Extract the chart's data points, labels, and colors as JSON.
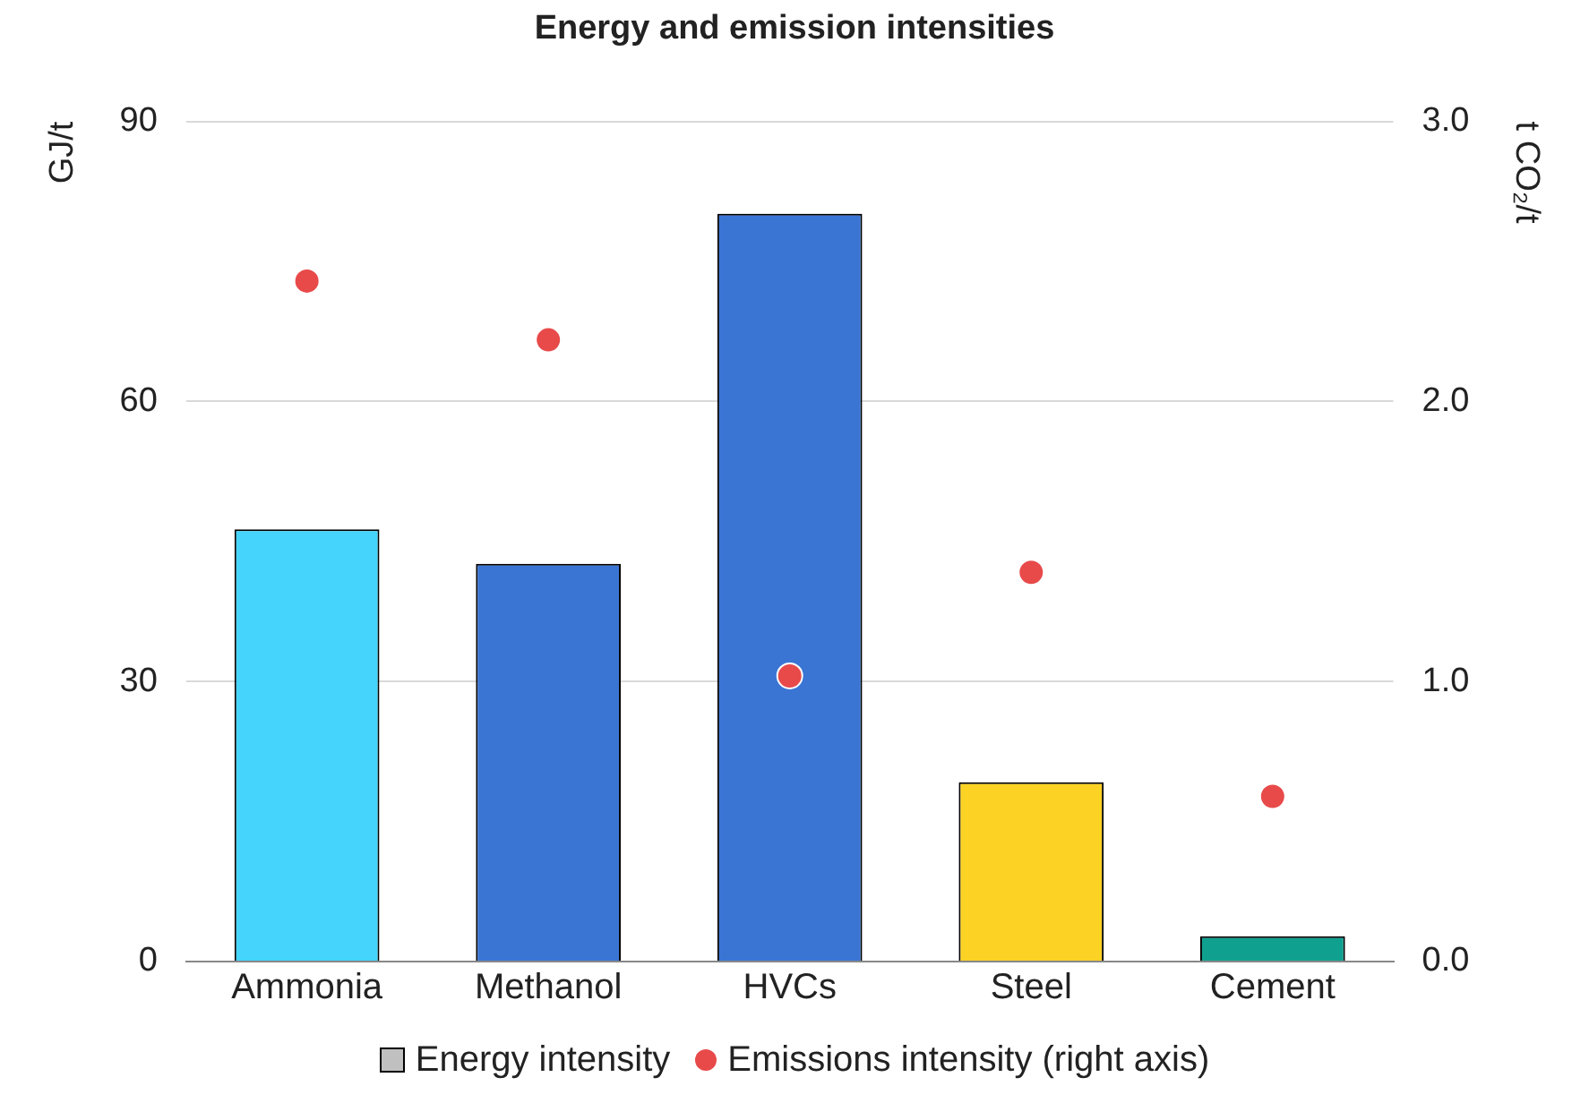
{
  "chart_data": {
    "type": "bar",
    "title": "Energy and emission intensities",
    "ylabel": "GJ/t",
    "y2label": "t CO₂/t",
    "categories": [
      "Ammonia",
      "Methanol",
      "HVCs",
      "Steel",
      "Cement"
    ],
    "series": [
      {
        "name": "Energy intensity",
        "color": "#c0c0c0",
        "colors": [
          "#44d4fc",
          "#3a75d4",
          "#3a75d4",
          "#fcd224",
          "#10a090"
        ],
        "values": [
          46.3,
          42.6,
          80.1,
          19.2,
          2.7
        ]
      },
      {
        "name": "Emissions intensity (right axis)",
        "type": "scatter",
        "axis": "y2",
        "color": "#e84a4a",
        "marker": "circle",
        "x": [
          "Ammonia",
          "Methanol",
          "HVCs",
          "Steel",
          "Cement"
        ],
        "values": [
          2.43,
          2.22,
          1.02,
          1.39,
          0.59
        ]
      }
    ],
    "ylim": [
      0,
      90
    ],
    "yticks": [
      0,
      30,
      60,
      90
    ],
    "y2lim": [
      0,
      3
    ],
    "y2ticks": [
      {
        "value": 0,
        "label": "0.0"
      },
      {
        "value": 1,
        "label": "1.0"
      },
      {
        "value": 2,
        "label": "2.0"
      },
      {
        "value": 3,
        "label": "3.0"
      }
    ],
    "grid": "y",
    "legend": "bottom"
  }
}
